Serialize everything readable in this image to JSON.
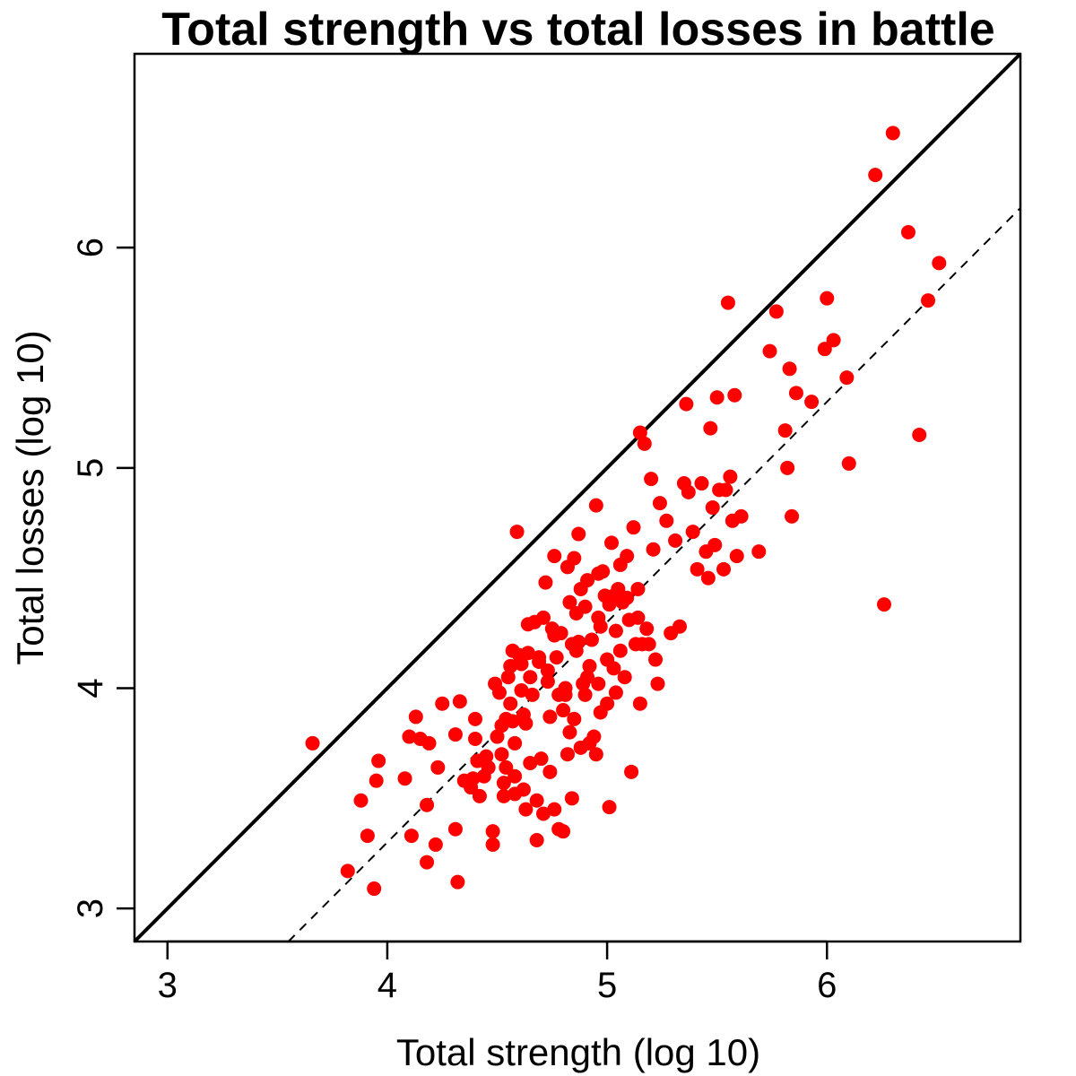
{
  "chart_data": {
    "type": "scatter",
    "title": "Total strength vs total losses in battle",
    "xlabel": "Total strength (log 10)",
    "ylabel": "Total losses (log 10)",
    "xlim": [
      2.85,
      6.88
    ],
    "ylim": [
      2.85,
      6.88
    ],
    "x_ticks": [
      3,
      4,
      5,
      6
    ],
    "y_ticks": [
      3,
      4,
      5,
      6
    ],
    "x_tick_labels": [
      "3",
      "4",
      "5",
      "6"
    ],
    "y_tick_labels": [
      "3",
      "4",
      "5",
      "6"
    ],
    "grid": false,
    "point_color": "#ff0000",
    "reference_lines": [
      {
        "style": "solid",
        "slope": 1,
        "intercept": 0
      },
      {
        "style": "dashed",
        "slope": 1,
        "intercept": -0.7
      }
    ],
    "points": [
      [
        3.66,
        3.75
      ],
      [
        3.82,
        3.17
      ],
      [
        3.88,
        3.49
      ],
      [
        3.91,
        3.33
      ],
      [
        3.94,
        3.09
      ],
      [
        3.95,
        3.58
      ],
      [
        3.96,
        3.67
      ],
      [
        4.08,
        3.59
      ],
      [
        4.1,
        3.78
      ],
      [
        4.11,
        3.33
      ],
      [
        4.13,
        3.87
      ],
      [
        4.15,
        3.77
      ],
      [
        4.18,
        3.47
      ],
      [
        4.19,
        3.75
      ],
      [
        4.18,
        3.21
      ],
      [
        4.22,
        3.29
      ],
      [
        4.23,
        3.64
      ],
      [
        4.25,
        3.93
      ],
      [
        4.31,
        3.36
      ],
      [
        4.31,
        3.79
      ],
      [
        4.32,
        3.12
      ],
      [
        4.33,
        3.94
      ],
      [
        4.35,
        3.58
      ],
      [
        4.38,
        3.55
      ],
      [
        4.4,
        3.86
      ],
      [
        4.4,
        3.77
      ],
      [
        4.41,
        3.67
      ],
      [
        4.42,
        3.51
      ],
      [
        4.44,
        3.6
      ],
      [
        4.46,
        3.64
      ],
      [
        4.48,
        3.35
      ],
      [
        4.48,
        3.29
      ],
      [
        4.49,
        4.02
      ],
      [
        4.5,
        3.78
      ],
      [
        4.51,
        3.98
      ],
      [
        4.52,
        3.83
      ],
      [
        4.53,
        3.57
      ],
      [
        4.53,
        3.51
      ],
      [
        4.54,
        3.64
      ],
      [
        4.55,
        4.05
      ],
      [
        4.56,
        4.1
      ],
      [
        4.56,
        3.93
      ],
      [
        4.57,
        4.17
      ],
      [
        4.58,
        3.75
      ],
      [
        4.58,
        3.6
      ],
      [
        4.59,
        4.71
      ],
      [
        4.6,
        4.15
      ],
      [
        4.61,
        3.99
      ],
      [
        4.62,
        3.54
      ],
      [
        4.63,
        3.84
      ],
      [
        4.63,
        3.45
      ],
      [
        4.64,
        4.29
      ],
      [
        4.65,
        4.05
      ],
      [
        4.65,
        3.66
      ],
      [
        4.66,
        3.97
      ],
      [
        4.67,
        4.3
      ],
      [
        4.68,
        3.31
      ],
      [
        4.69,
        4.12
      ],
      [
        4.7,
        3.68
      ],
      [
        4.71,
        4.32
      ],
      [
        4.71,
        3.43
      ],
      [
        4.72,
        4.48
      ],
      [
        4.73,
        4.08
      ],
      [
        4.74,
        3.87
      ],
      [
        4.74,
        3.62
      ],
      [
        4.75,
        4.27
      ],
      [
        4.76,
        4.6
      ],
      [
        4.76,
        3.45
      ],
      [
        4.77,
        4.14
      ],
      [
        4.78,
        3.97
      ],
      [
        4.78,
        3.36
      ],
      [
        4.79,
        4.25
      ],
      [
        4.8,
        3.9
      ],
      [
        4.8,
        3.35
      ],
      [
        4.81,
        4.0
      ],
      [
        4.82,
        4.55
      ],
      [
        4.82,
        3.7
      ],
      [
        4.83,
        4.39
      ],
      [
        4.84,
        4.2
      ],
      [
        4.84,
        3.5
      ],
      [
        4.85,
        4.59
      ],
      [
        4.85,
        3.86
      ],
      [
        4.86,
        4.34
      ],
      [
        4.86,
        4.17
      ],
      [
        4.87,
        4.7
      ],
      [
        4.88,
        4.45
      ],
      [
        4.88,
        3.73
      ],
      [
        4.89,
        4.02
      ],
      [
        4.9,
        4.37
      ],
      [
        4.9,
        3.97
      ],
      [
        4.91,
        4.49
      ],
      [
        4.92,
        3.75
      ],
      [
        4.93,
        4.22
      ],
      [
        4.94,
        3.78
      ],
      [
        4.95,
        4.83
      ],
      [
        4.95,
        3.7
      ],
      [
        4.96,
        4.32
      ],
      [
        4.96,
        4.02
      ],
      [
        4.97,
        3.89
      ],
      [
        4.98,
        4.53
      ],
      [
        4.99,
        4.42
      ],
      [
        5.0,
        4.13
      ],
      [
        5.01,
        4.38
      ],
      [
        5.01,
        3.46
      ],
      [
        5.02,
        4.66
      ],
      [
        5.03,
        4.42
      ],
      [
        5.04,
        4.26
      ],
      [
        5.04,
        3.98
      ],
      [
        5.05,
        4.45
      ],
      [
        5.06,
        4.17
      ],
      [
        5.07,
        4.39
      ],
      [
        5.08,
        4.05
      ],
      [
        5.09,
        4.6
      ],
      [
        5.1,
        4.31
      ],
      [
        5.11,
        3.62
      ],
      [
        5.12,
        4.73
      ],
      [
        5.13,
        4.2
      ],
      [
        5.14,
        4.45
      ],
      [
        5.15,
        3.93
      ],
      [
        5.15,
        5.16
      ],
      [
        5.17,
        5.11
      ],
      [
        5.18,
        4.27
      ],
      [
        5.19,
        4.2
      ],
      [
        5.2,
        4.95
      ],
      [
        5.21,
        4.63
      ],
      [
        5.22,
        4.13
      ],
      [
        5.23,
        4.02
      ],
      [
        5.24,
        4.84
      ],
      [
        5.27,
        4.76
      ],
      [
        5.29,
        4.25
      ],
      [
        5.31,
        4.67
      ],
      [
        5.33,
        4.28
      ],
      [
        5.35,
        4.93
      ],
      [
        5.36,
        5.29
      ],
      [
        5.37,
        4.89
      ],
      [
        5.39,
        4.71
      ],
      [
        5.41,
        4.54
      ],
      [
        5.43,
        4.93
      ],
      [
        5.45,
        4.62
      ],
      [
        5.46,
        4.5
      ],
      [
        5.47,
        5.18
      ],
      [
        5.48,
        4.82
      ],
      [
        5.49,
        4.65
      ],
      [
        5.5,
        5.32
      ],
      [
        5.51,
        4.9
      ],
      [
        5.53,
        4.54
      ],
      [
        5.54,
        4.9
      ],
      [
        5.55,
        5.75
      ],
      [
        5.56,
        4.96
      ],
      [
        5.57,
        4.76
      ],
      [
        5.58,
        5.33
      ],
      [
        5.59,
        4.6
      ],
      [
        5.61,
        4.78
      ],
      [
        5.69,
        4.62
      ],
      [
        5.74,
        5.53
      ],
      [
        5.77,
        5.71
      ],
      [
        5.81,
        5.17
      ],
      [
        5.82,
        5.0
      ],
      [
        5.83,
        5.45
      ],
      [
        5.84,
        4.78
      ],
      [
        5.86,
        5.34
      ],
      [
        5.93,
        5.3
      ],
      [
        5.99,
        5.54
      ],
      [
        6.0,
        5.77
      ],
      [
        6.03,
        5.58
      ],
      [
        6.09,
        5.41
      ],
      [
        6.1,
        5.02
      ],
      [
        6.22,
        6.33
      ],
      [
        6.26,
        4.38
      ],
      [
        6.3,
        6.52
      ],
      [
        6.37,
        6.07
      ],
      [
        6.42,
        5.15
      ],
      [
        6.46,
        5.76
      ],
      [
        6.51,
        5.93
      ],
      [
        4.58,
        3.52
      ],
      [
        4.45,
        3.69
      ],
      [
        4.69,
        4.14
      ],
      [
        4.73,
        4.03
      ],
      [
        4.76,
        4.24
      ],
      [
        4.92,
        4.1
      ],
      [
        4.97,
        4.28
      ],
      [
        5.03,
        4.09
      ],
      [
        5.09,
        4.41
      ],
      [
        5.14,
        4.32
      ],
      [
        5.16,
        4.2
      ],
      [
        4.81,
        3.97
      ],
      [
        4.87,
        4.21
      ],
      [
        4.64,
        4.16
      ],
      [
        4.57,
        3.85
      ],
      [
        4.52,
        3.7
      ],
      [
        4.39,
        3.59
      ],
      [
        4.62,
        3.88
      ],
      [
        4.96,
        4.52
      ],
      [
        5.06,
        4.56
      ],
      [
        4.91,
        4.05
      ],
      [
        4.68,
        3.49
      ],
      [
        4.83,
        3.8
      ],
      [
        5.0,
        3.93
      ],
      [
        4.54,
        3.86
      ],
      [
        4.61,
        4.11
      ]
    ]
  }
}
